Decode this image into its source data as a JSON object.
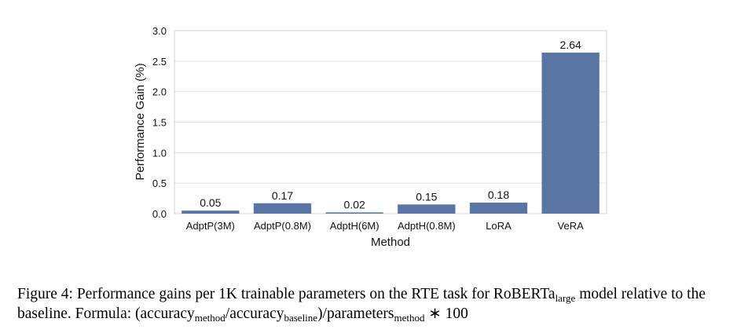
{
  "chart_data": {
    "type": "bar",
    "xlabel": "Method",
    "ylabel": "Performance Gain (%)",
    "categories": [
      "AdptP(3M)",
      "AdptP(0.8M)",
      "AdptH(6M)",
      "AdptH(0.8M)",
      "LoRA",
      "VeRA"
    ],
    "values": [
      0.05,
      0.17,
      0.02,
      0.15,
      0.18,
      2.64
    ],
    "data_labels": [
      "0.05",
      "0.17",
      "0.02",
      "0.15",
      "0.18",
      "2.64"
    ],
    "ylim": [
      0,
      3.0
    ],
    "yticks": [
      0.0,
      0.5,
      1.0,
      1.5,
      2.0,
      2.5,
      3.0
    ],
    "ytick_labels": [
      "0.0",
      "0.5",
      "1.0",
      "1.5",
      "2.0",
      "2.5",
      "3.0"
    ],
    "grid": "horizontal",
    "bar_color": "#5975a4",
    "grid_color": "#e3e3e3"
  },
  "caption": {
    "prefix": "Figure 4: Performance gains per 1K trainable parameters on the RTE task for RoBERTa",
    "model_sub": "large",
    "middle": " model relative to the baseline. Formula: (accuracy",
    "sub1": "method",
    "sep": "/accuracy",
    "sub2": "baseline",
    "mid2": ")/parameters",
    "sub3": "method",
    "suffix": " ∗ 100"
  }
}
